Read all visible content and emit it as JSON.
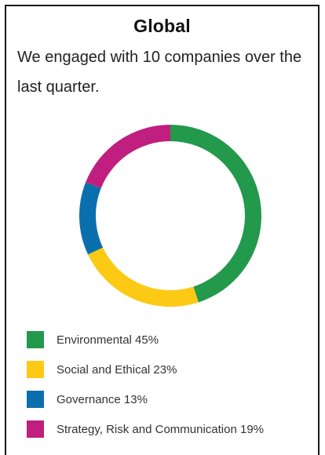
{
  "card": {
    "title": "Global",
    "intro": "We engaged with 10 companies over the last quarter."
  },
  "chart_data": {
    "type": "pie",
    "donut": true,
    "title": "",
    "legend_position": "bottom",
    "labels": [
      "Environmental",
      "Social and Ethical",
      "Governance",
      "Strategy, Risk and Communication"
    ],
    "values": [
      45,
      23,
      13,
      19
    ],
    "unit": "%",
    "colors": [
      "#23994b",
      "#fcc915",
      "#0a6fad",
      "#c01f7f"
    ],
    "legend": [
      {
        "label": "Environmental 45%",
        "color": "#23994b"
      },
      {
        "label": "Social and Ethical 23%",
        "color": "#fcc915"
      },
      {
        "label": "Governance 13%",
        "color": "#0a6fad"
      },
      {
        "label": "Strategy, Risk and Communication 19%",
        "color": "#c01f7f"
      }
    ]
  }
}
